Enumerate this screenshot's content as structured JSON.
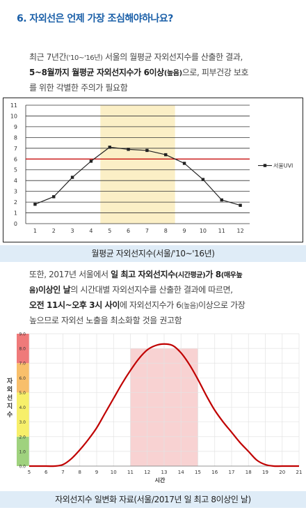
{
  "heading": "6. 자외선은 언제 가장 조심해야하나요?",
  "para1": {
    "line1_pre": "최근 7년간",
    "line1_small": "('10~'16년)",
    "line1_post": " 서울의 월평균 자외선지수를 산출한 결과,",
    "line2_bold": "5~8월까지 월평균 자외선지수가 6이상",
    "line2_small": "(높음)",
    "line2_post": "으로, 피부건강 보호",
    "line3": "를 위한 각별한 주의가 필요함"
  },
  "caption1": "월평균 자외선지수(서울/'10~'16년)",
  "para2": {
    "line1_pre": "또한, 2017년 서울에서 ",
    "line1_bold": "일 최고 자외선지수",
    "line1_small": "(시간평균)",
    "line1_bold2": "가 8",
    "line1_small2": "(매우높",
    "line2_small": "음)",
    "line2_bold": "이상인 날",
    "line2_post": "의 시간대별 자외선지수를 산출한 결과에 따르면,",
    "line3_bold": "오전 11시~오후 3시 사이",
    "line3_post": "에 자외선지수가 6",
    "line3_small": "(높음)",
    "line3_post2": "이상으로 가장",
    "line4": "높으므로 자외선 노출을 최소화할 것을 권고함"
  },
  "caption2": "자외선지수 일변화 자료(서울/2017년 일 최고 8이상인 날)",
  "colors": {
    "heading": "#1a5fa8",
    "caption_bg": "#dfecf7",
    "highlight1": "#fbefc6",
    "highlight2": "#f8d2d2",
    "curve2": "#c00000",
    "threshold": "#cc0000"
  },
  "chart_data": [
    {
      "type": "line",
      "title": "",
      "categories": [
        "1",
        "2",
        "3",
        "4",
        "5",
        "6",
        "7",
        "8",
        "9",
        "10",
        "11",
        "12"
      ],
      "series": [
        {
          "name": "서울UVI",
          "values": [
            1.8,
            2.5,
            4.3,
            5.8,
            7.1,
            6.9,
            6.8,
            6.4,
            5.6,
            4.1,
            2.2,
            1.7
          ]
        }
      ],
      "ylim": [
        0,
        11
      ],
      "yticks": [
        "0",
        "1",
        "2",
        "3",
        "4",
        "5",
        "6",
        "7",
        "8",
        "9",
        "10",
        "11"
      ],
      "threshold": 6,
      "highlight_range": [
        "5",
        "8"
      ],
      "legend": "right",
      "grid": true
    },
    {
      "type": "line",
      "title": "",
      "xlabel": "시간",
      "ylabel": "자외선지수",
      "xticks": [
        "5",
        "6",
        "7",
        "8",
        "9",
        "10",
        "11",
        "12",
        "13",
        "14",
        "15",
        "16",
        "17",
        "18",
        "19",
        "20",
        "21"
      ],
      "yticks": [
        "0.0",
        "1.0",
        "2.0",
        "3.0",
        "4.0",
        "5.0",
        "6.0",
        "7.0",
        "8.0",
        "9.0"
      ],
      "xlim": [
        5,
        21
      ],
      "ylim": [
        0,
        9
      ],
      "x": [
        5,
        6,
        6.5,
        7,
        7.5,
        8,
        8.5,
        9,
        9.5,
        10,
        10.5,
        11,
        11.5,
        12,
        12.5,
        13,
        13.5,
        14,
        14.5,
        15,
        15.5,
        16,
        16.5,
        17,
        17.5,
        18,
        18.5,
        19,
        19.5,
        20,
        21
      ],
      "series": [
        {
          "values": [
            0,
            0,
            0,
            0.1,
            0.5,
            1.1,
            1.8,
            2.6,
            3.6,
            4.6,
            5.6,
            6.5,
            7.3,
            7.9,
            8.2,
            8.3,
            8.2,
            7.7,
            6.9,
            5.9,
            4.8,
            3.8,
            3.0,
            2.3,
            1.6,
            1.0,
            0.4,
            0.1,
            0,
            0,
            0
          ]
        }
      ],
      "highlight_range": [
        11,
        15
      ],
      "grid": true,
      "risk_bands": [
        {
          "from": 0,
          "to": 2,
          "color": "#9fd27e"
        },
        {
          "from": 2,
          "to": 5,
          "color": "#f7ef6a"
        },
        {
          "from": 5,
          "to": 7,
          "color": "#f8bf6b"
        },
        {
          "from": 7,
          "to": 9,
          "color": "#ef7a7a"
        }
      ]
    }
  ]
}
